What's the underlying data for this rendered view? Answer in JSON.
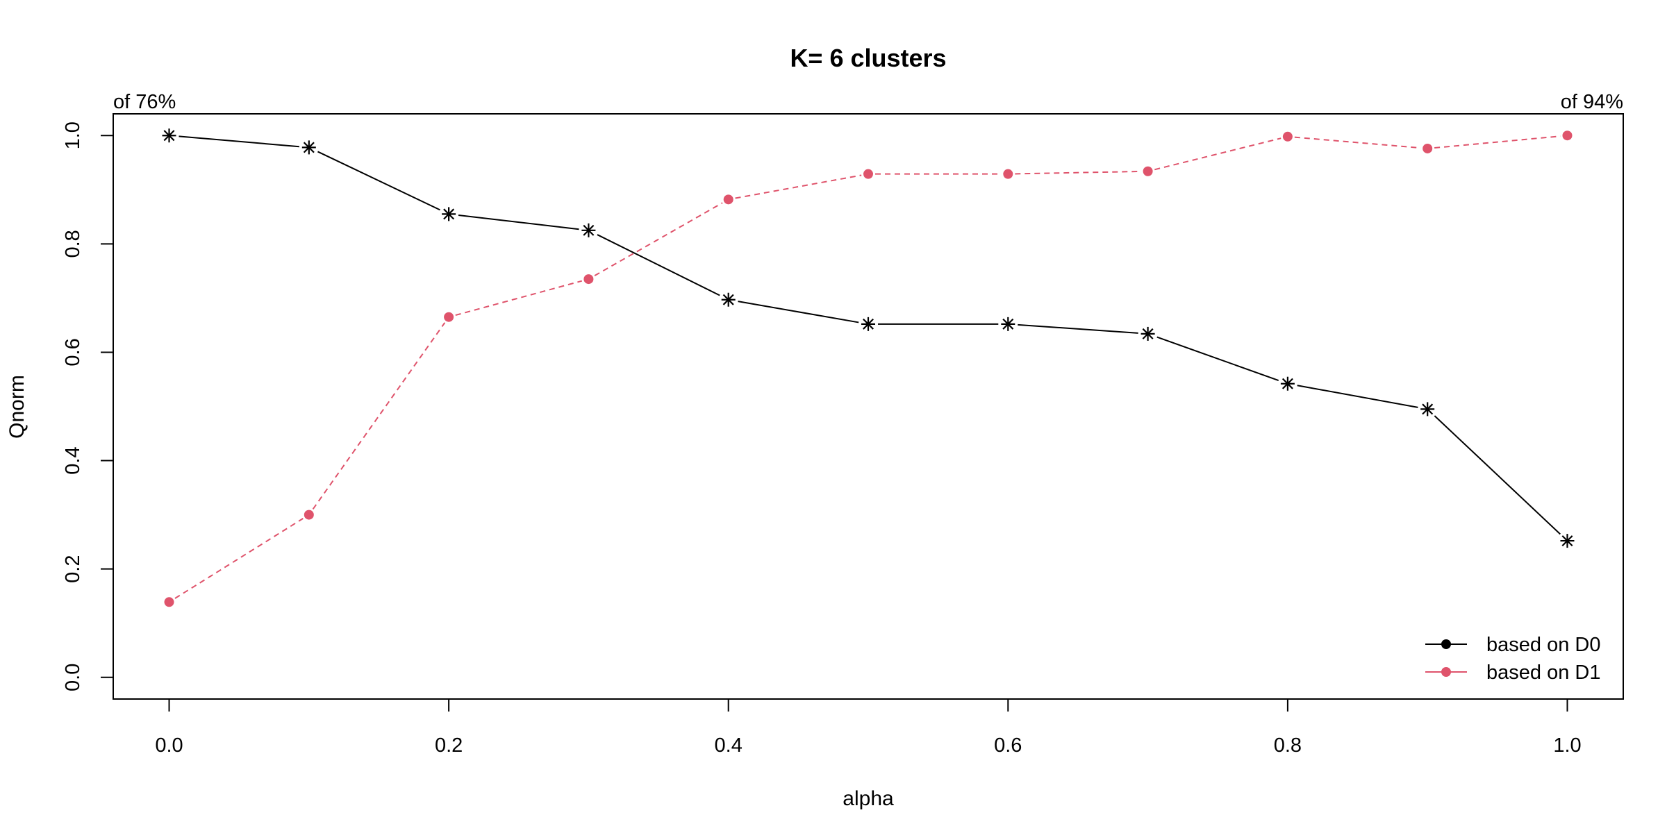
{
  "chart_data": {
    "type": "line",
    "title": "K= 6 clusters",
    "xlabel": "alpha",
    "ylabel": "Qnorm",
    "xlim": [
      -0.04,
      1.04
    ],
    "ylim": [
      -0.04,
      1.04
    ],
    "x_ticks": [
      "0.0",
      "0.2",
      "0.4",
      "0.6",
      "0.8",
      "1.0"
    ],
    "y_ticks": [
      "0.0",
      "0.2",
      "0.4",
      "0.6",
      "0.8",
      "1.0"
    ],
    "corner_labels": {
      "left": "of 76%",
      "right": "of 94%"
    },
    "grid": false,
    "legend_position": "bottom-right",
    "x": [
      0.0,
      0.1,
      0.2,
      0.3,
      0.4,
      0.5,
      0.6,
      0.7,
      0.8,
      0.9,
      1.0
    ],
    "series": [
      {
        "name": "based on D0",
        "color": "#000000",
        "line_style": "solid",
        "marker": "asterisk",
        "values": [
          1.0,
          0.978,
          0.855,
          0.825,
          0.697,
          0.652,
          0.652,
          0.634,
          0.542,
          0.495,
          0.252
        ]
      },
      {
        "name": "based on D1",
        "color": "#DF536B",
        "line_style": "dashed",
        "marker": "dot",
        "values": [
          0.139,
          0.3,
          0.665,
          0.735,
          0.882,
          0.929,
          0.929,
          0.934,
          0.998,
          0.976,
          1.0
        ]
      }
    ]
  }
}
